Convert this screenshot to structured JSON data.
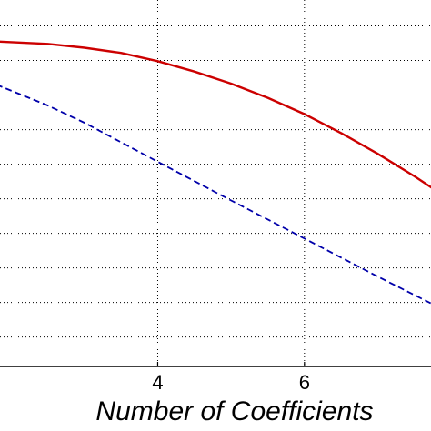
{
  "chart_data": {
    "type": "line",
    "xlabel": "Number of Coefficients",
    "ylabel": "",
    "title": "",
    "xlim": [
      1.8,
      7.75
    ],
    "ylim": [
      0,
      10.6
    ],
    "x_ticks": [
      4,
      6
    ],
    "y_gridlines": [
      0.85,
      1.85,
      2.85,
      3.85,
      4.85,
      5.85,
      6.85,
      7.85,
      8.85,
      9.85
    ],
    "grid": true,
    "series": [
      {
        "style": "solid",
        "color": "#cc0000",
        "x": [
          1.8,
          2.5,
          3.0,
          3.5,
          4.0,
          4.5,
          5.0,
          5.5,
          6.0,
          6.5,
          7.0,
          7.5,
          7.75
        ],
        "y": [
          9.4,
          9.33,
          9.22,
          9.07,
          8.83,
          8.53,
          8.18,
          7.77,
          7.3,
          6.75,
          6.15,
          5.5,
          5.15
        ]
      },
      {
        "style": "dashed",
        "color": "#0000aa",
        "x": [
          1.8,
          2.5,
          3.0,
          4.0,
          5.0,
          6.0,
          7.0,
          7.75
        ],
        "y": [
          8.15,
          7.55,
          7.05,
          5.92,
          4.8,
          3.7,
          2.6,
          1.8
        ]
      }
    ]
  }
}
